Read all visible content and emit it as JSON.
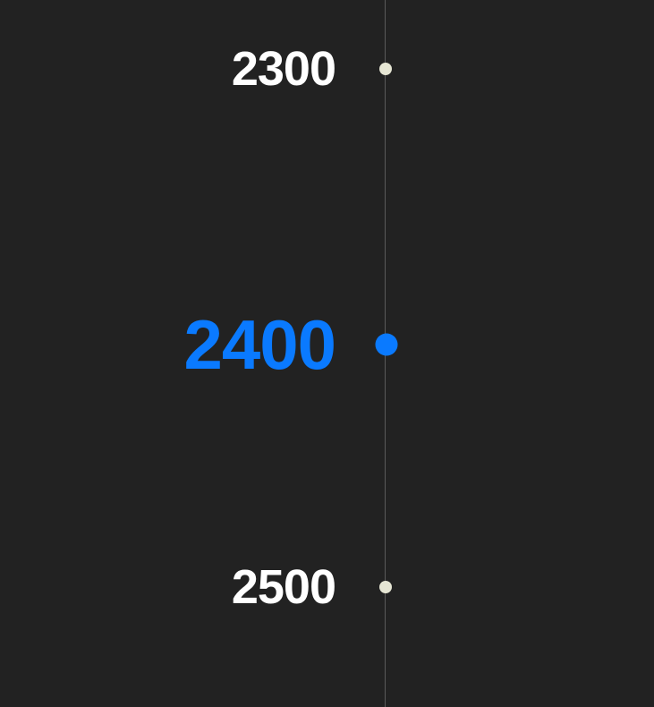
{
  "colors": {
    "background": "#222222",
    "axis_line": "#5a5a5a",
    "label_default": "#ffffff",
    "dot_default": "#e6e6d4",
    "accent": "#0a7aff"
  },
  "timeline": {
    "items": [
      {
        "label": "2300",
        "selected": false
      },
      {
        "label": "2400",
        "selected": true
      },
      {
        "label": "2500",
        "selected": false
      }
    ]
  }
}
